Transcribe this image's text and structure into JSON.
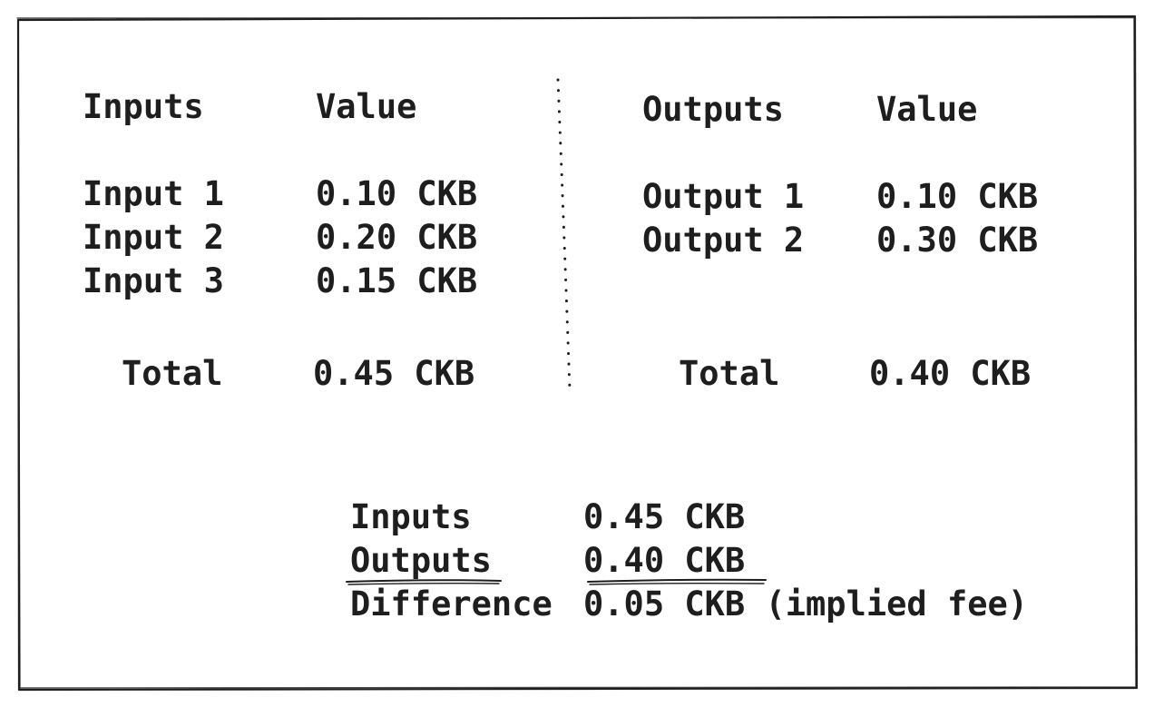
{
  "inputs_table": {
    "header_name": "Inputs",
    "header_value": "Value",
    "rows": [
      {
        "name": "Input 1",
        "value": "0.10 CKB"
      },
      {
        "name": "Input 2",
        "value": "0.20 CKB"
      },
      {
        "name": "Input 3",
        "value": "0.15 CKB"
      }
    ],
    "total_label": "Total",
    "total_value": "0.45 CKB"
  },
  "outputs_table": {
    "header_name": "Outputs",
    "header_value": "Value",
    "rows": [
      {
        "name": "Output 1",
        "value": "0.10 CKB"
      },
      {
        "name": "Output 2",
        "value": "0.30 CKB"
      }
    ],
    "total_label": "Total",
    "total_value": "0.40 CKB"
  },
  "summary": {
    "inputs_label": "Inputs",
    "inputs_value": "0.45 CKB",
    "outputs_label": "Outputs",
    "outputs_value": "0.40 CKB",
    "difference_label": "Difference",
    "difference_value": "0.05 CKB (implied fee)"
  },
  "colors": {
    "ink": "#1e1e1e",
    "background": "#ffffff"
  }
}
